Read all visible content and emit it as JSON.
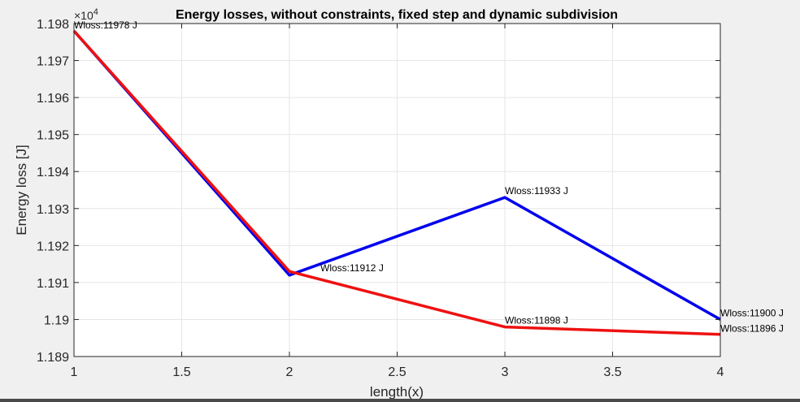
{
  "chart_data": {
    "type": "line",
    "title": "Energy losses, without constraints, fixed step and dynamic subdivision",
    "xlabel": "length(x)",
    "ylabel": "Energy loss [J]",
    "exponent_label": "×10",
    "exponent_power": "4",
    "xlim": [
      1,
      4
    ],
    "ylim": [
      11890,
      11980
    ],
    "x_ticks": [
      1,
      1.5,
      2,
      2.5,
      3,
      3.5,
      4
    ],
    "x_tick_labels": [
      "1",
      "1.5",
      "2",
      "2.5",
      "3",
      "3.5",
      "4"
    ],
    "y_ticks": [
      11890,
      11900,
      11910,
      11920,
      11930,
      11940,
      11950,
      11960,
      11970,
      11980
    ],
    "y_tick_labels": [
      "1.189",
      "1.19",
      "1.191",
      "1.192",
      "1.193",
      "1.194",
      "1.195",
      "1.196",
      "1.197",
      "1.198"
    ],
    "grid": true,
    "series": [
      {
        "color": "#0000ee",
        "x": [
          1,
          2,
          3,
          4
        ],
        "y": [
          11978,
          11912,
          11933,
          11900
        ]
      },
      {
        "color": "#ee1111",
        "x": [
          1,
          2,
          3,
          4
        ],
        "y": [
          11978,
          11913,
          11898,
          11896
        ]
      }
    ],
    "annotations": [
      {
        "text": "Wloss:11978 J",
        "x": 1,
        "y": 11978,
        "anchor": "start",
        "dx": 0,
        "dy": -3
      },
      {
        "text": "Wloss:11912 J",
        "x": 2,
        "y": 11912,
        "anchor": "start",
        "dx": 38,
        "dy": -5
      },
      {
        "text": "Wloss:11933 J",
        "x": 3,
        "y": 11933,
        "anchor": "start",
        "dx": 0,
        "dy": -4
      },
      {
        "text": "Wloss:11898 J",
        "x": 3,
        "y": 11898,
        "anchor": "start",
        "dx": 0,
        "dy": -4
      },
      {
        "text": "Wloss:11900 J",
        "x": 4,
        "y": 11900,
        "anchor": "start",
        "dx": 0,
        "dy": -4
      },
      {
        "text": "Wloss:11896 J",
        "x": 4,
        "y": 11896,
        "anchor": "start",
        "dx": 0,
        "dy": -3
      }
    ]
  }
}
